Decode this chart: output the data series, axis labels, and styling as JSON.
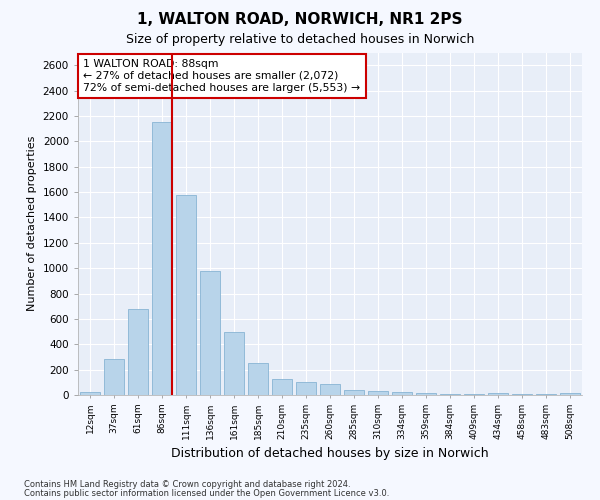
{
  "title": "1, WALTON ROAD, NORWICH, NR1 2PS",
  "subtitle": "Size of property relative to detached houses in Norwich",
  "xlabel": "Distribution of detached houses by size in Norwich",
  "ylabel": "Number of detached properties",
  "categories": [
    "12sqm",
    "37sqm",
    "61sqm",
    "86sqm",
    "111sqm",
    "136sqm",
    "161sqm",
    "185sqm",
    "210sqm",
    "235sqm",
    "260sqm",
    "285sqm",
    "310sqm",
    "334sqm",
    "359sqm",
    "384sqm",
    "409sqm",
    "434sqm",
    "458sqm",
    "483sqm",
    "508sqm"
  ],
  "values": [
    20,
    280,
    680,
    2150,
    1580,
    980,
    500,
    250,
    130,
    100,
    90,
    40,
    30,
    20,
    15,
    10,
    5,
    15,
    5,
    5,
    15
  ],
  "bar_color": "#b8d4ea",
  "bar_edge_color": "#88b4d4",
  "vline_color": "#cc0000",
  "annotation_text": "1 WALTON ROAD: 88sqm\n← 27% of detached houses are smaller (2,072)\n72% of semi-detached houses are larger (5,553) →",
  "annotation_box_color": "#ffffff",
  "annotation_box_edge": "#cc0000",
  "ylim": [
    0,
    2700
  ],
  "yticks": [
    0,
    200,
    400,
    600,
    800,
    1000,
    1200,
    1400,
    1600,
    1800,
    2000,
    2200,
    2400,
    2600
  ],
  "fig_bg": "#f5f8ff",
  "plot_bg": "#e8eef8",
  "grid_color": "#ffffff",
  "footnote1": "Contains HM Land Registry data © Crown copyright and database right 2024.",
  "footnote2": "Contains public sector information licensed under the Open Government Licence v3.0."
}
